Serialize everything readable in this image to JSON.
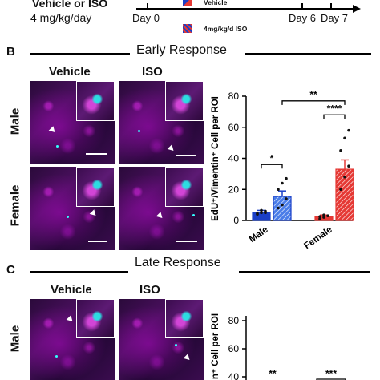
{
  "top": {
    "treatment_label": "Vehicle or ISO",
    "dose_label": "4 mg/kg/day",
    "timeline_days": [
      "Day 0",
      "Day 6",
      "Day 7"
    ],
    "legend": [
      {
        "label": "Vehicle",
        "color": "#1a3fc7"
      },
      {
        "label": "4mg/kg/d ISO",
        "color": "#e53935"
      }
    ]
  },
  "panel_b": {
    "letter": "B",
    "title": "Early Response",
    "col_vehicle": "Vehicle",
    "col_iso": "ISO",
    "row_male": "Male",
    "row_female": "Female"
  },
  "panel_c": {
    "letter": "C",
    "title": "Late Response",
    "col_vehicle": "Vehicle",
    "col_iso": "ISO",
    "row_male": "Male"
  },
  "chart_data": [
    {
      "type": "bar",
      "ylabel": "EdU⁺/Vimentin⁺ Cell per ROI",
      "ylim": [
        0,
        80
      ],
      "yticks": [
        "0",
        "20",
        "40",
        "60",
        "80"
      ],
      "categories": [
        "Male",
        "Female"
      ],
      "series": [
        {
          "name": "Vehicle",
          "values": [
            5,
            2.5
          ],
          "errors": [
            1.5,
            1
          ]
        },
        {
          "name": "4mg/kg/d ISO",
          "values": [
            15.5,
            33
          ],
          "errors": [
            3.5,
            6
          ]
        }
      ],
      "significance": [
        {
          "label": "*",
          "between": "Male Vehicle vs Male ISO"
        },
        {
          "label": "****",
          "between": "Female Vehicle vs Female ISO"
        },
        {
          "label": "**",
          "between": "Male ISO vs Female ISO"
        }
      ],
      "points": {
        "male_vehicle": [
          4,
          5,
          6,
          4.5,
          6.5,
          5
        ],
        "male_iso": [
          8,
          10,
          14,
          20,
          24,
          27
        ],
        "female_vehicle": [
          1,
          2,
          3,
          2.5,
          3.5
        ],
        "female_iso": [
          20,
          28,
          35,
          45,
          53,
          58
        ]
      }
    },
    {
      "type": "bar",
      "ylabel": "n⁺ Cell per ROI",
      "ylim": [
        0,
        80
      ],
      "yticks": [
        "40",
        "60",
        "80"
      ],
      "significance": [
        {
          "label": "**"
        },
        {
          "label": "***"
        }
      ]
    }
  ]
}
